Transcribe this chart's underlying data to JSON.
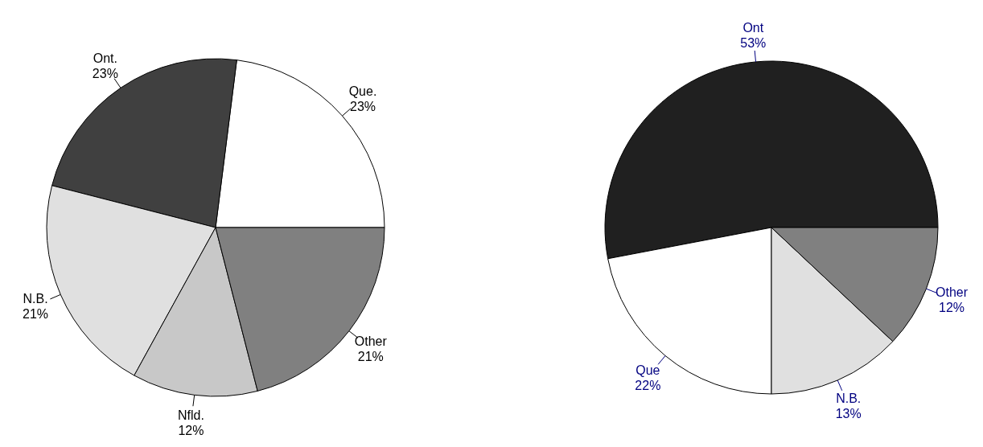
{
  "chart_data": [
    {
      "type": "pie",
      "categories": [
        "Que.",
        "Ont.",
        "N.B.",
        "Nfld.",
        "Other"
      ],
      "values": [
        23,
        23,
        21,
        12,
        21
      ],
      "value_labels": [
        "23%",
        "23%",
        "21%",
        "12%",
        "21%"
      ],
      "colors": [
        "#ffffff",
        "#404040",
        "#e0e0e0",
        "#c8c8c8",
        "#808080"
      ]
    },
    {
      "type": "pie",
      "categories": [
        "Ont",
        "Que",
        "N.B.",
        "Other"
      ],
      "values": [
        53,
        22,
        13,
        12
      ],
      "value_labels": [
        "53%",
        "22%",
        "13%",
        "12%"
      ],
      "colors": [
        "#202020",
        "#ffffff",
        "#e0e0e0",
        "#808080"
      ]
    }
  ]
}
